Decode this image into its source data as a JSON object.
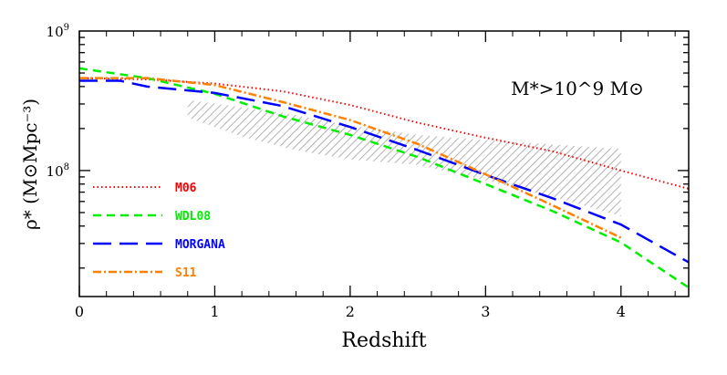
{
  "chart_data": {
    "type": "line",
    "title": "",
    "annotation": "M*>10^9 M⊙",
    "xlabel": "Redshift",
    "ylabel": "ρ* (M⊙Mpc⁻³)",
    "xlim": [
      0,
      4.5
    ],
    "ylim": [
      12500000.0,
      1000000000.0
    ],
    "yscale": "log",
    "grid": false,
    "legend_position": "bottom-left",
    "x_ticks": [
      "0",
      "1",
      "2",
      "3",
      "4"
    ],
    "y_ticks": [
      {
        "value": 1000000000.0,
        "base": "10",
        "exp": "9"
      },
      {
        "value": 100000000.0,
        "base": "10",
        "exp": "8"
      }
    ],
    "series": [
      {
        "name": "M06",
        "color": "#ff0000",
        "style": "dotted",
        "x": [
          0,
          0.5,
          1,
          1.5,
          2,
          2.5,
          3,
          3.5,
          4,
          4.5
        ],
        "y": [
          460000000.0,
          450000000.0,
          420000000.0,
          370000000.0,
          295000000.0,
          220000000.0,
          172000000.0,
          137000000.0,
          100000000.0,
          74000000.0
        ]
      },
      {
        "name": "WDL08",
        "color": "#00ee00",
        "style": "dashed",
        "x": [
          0,
          0.5,
          1,
          1.5,
          2,
          2.5,
          3,
          3.5,
          4,
          4.5
        ],
        "y": [
          540000000.0,
          460000000.0,
          355000000.0,
          245000000.0,
          180000000.0,
          125000000.0,
          80000000.0,
          51000000.0,
          30500000.0,
          14500000.0
        ]
      },
      {
        "name": "MORGANA",
        "color": "#0000ff",
        "style": "long-dashed",
        "x": [
          0,
          0.3,
          0.5,
          1,
          1.5,
          2,
          2.5,
          3,
          3.5,
          4,
          4.5
        ],
        "y": [
          440000000.0,
          440000000.0,
          400000000.0,
          360000000.0,
          290000000.0,
          205000000.0,
          140000000.0,
          93000000.0,
          63000000.0,
          41000000.0,
          22000000.0
        ]
      },
      {
        "name": "S11",
        "color": "#ff8000",
        "style": "dash-dot",
        "x": [
          0,
          0.5,
          1,
          1.5,
          2,
          2.5,
          3,
          3.5,
          4
        ],
        "y": [
          460000000.0,
          460000000.0,
          410000000.0,
          310000000.0,
          230000000.0,
          155000000.0,
          94000000.0,
          56000000.0,
          33000000.0
        ]
      }
    ],
    "shaded_region": {
      "color": "#999999",
      "style": "hatched",
      "upper": {
        "x": [
          0.8,
          1.5,
          2,
          2.5,
          3,
          4
        ],
        "y": [
          320000000.0,
          260000000.0,
          210000000.0,
          180000000.0,
          165000000.0,
          143000000.0
        ]
      },
      "lower": {
        "x": [
          0.8,
          1.2,
          1.6,
          2,
          2.5,
          3,
          3.5,
          4
        ],
        "y": [
          240000000.0,
          175000000.0,
          140000000.0,
          120000000.0,
          110000000.0,
          85000000.0,
          65000000.0,
          47000000.0
        ]
      }
    }
  }
}
